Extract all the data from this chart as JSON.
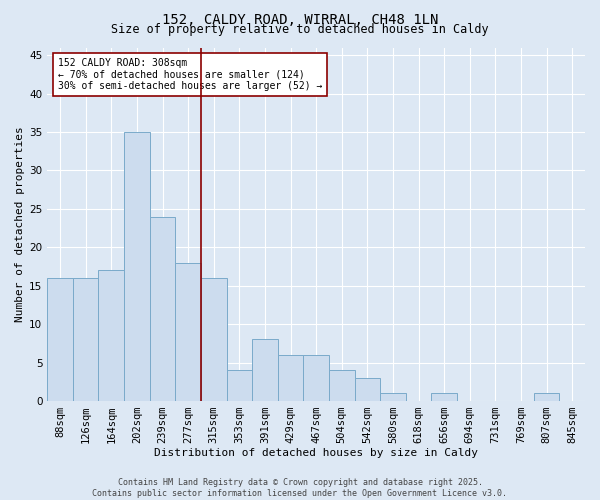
{
  "title": "152, CALDY ROAD, WIRRAL, CH48 1LN",
  "subtitle": "Size of property relative to detached houses in Caldy",
  "xlabel": "Distribution of detached houses by size in Caldy",
  "ylabel": "Number of detached properties",
  "bin_labels": [
    "88sqm",
    "126sqm",
    "164sqm",
    "202sqm",
    "239sqm",
    "277sqm",
    "315sqm",
    "353sqm",
    "391sqm",
    "429sqm",
    "467sqm",
    "504sqm",
    "542sqm",
    "580sqm",
    "618sqm",
    "656sqm",
    "694sqm",
    "731sqm",
    "769sqm",
    "807sqm",
    "845sqm"
  ],
  "bar_heights": [
    16,
    16,
    17,
    35,
    24,
    18,
    16,
    4,
    8,
    6,
    6,
    4,
    3,
    1,
    0,
    1,
    0,
    0,
    0,
    1,
    0
  ],
  "bar_color": "#ccdcee",
  "bar_edge_color": "#7aaaca",
  "background_color": "#dde8f4",
  "grid_color": "#ffffff",
  "vline_x_index": 6.0,
  "vline_color": "#8b0000",
  "annotation_line1": "152 CALDY ROAD: 308sqm",
  "annotation_line2": "← 70% of detached houses are smaller (124)",
  "annotation_line3": "30% of semi-detached houses are larger (52) →",
  "annotation_box_edgecolor": "#8b0000",
  "annotation_box_facecolor": "#ffffff",
  "ylim": [
    0,
    46
  ],
  "yticks": [
    0,
    5,
    10,
    15,
    20,
    25,
    30,
    35,
    40,
    45
  ],
  "footer_line1": "Contains HM Land Registry data © Crown copyright and database right 2025.",
  "footer_line2": "Contains public sector information licensed under the Open Government Licence v3.0.",
  "figsize": [
    6.0,
    5.0
  ],
  "dpi": 100,
  "title_fontsize": 10,
  "subtitle_fontsize": 8.5,
  "axis_label_fontsize": 8,
  "tick_fontsize": 7.5,
  "annotation_fontsize": 7,
  "footer_fontsize": 6
}
